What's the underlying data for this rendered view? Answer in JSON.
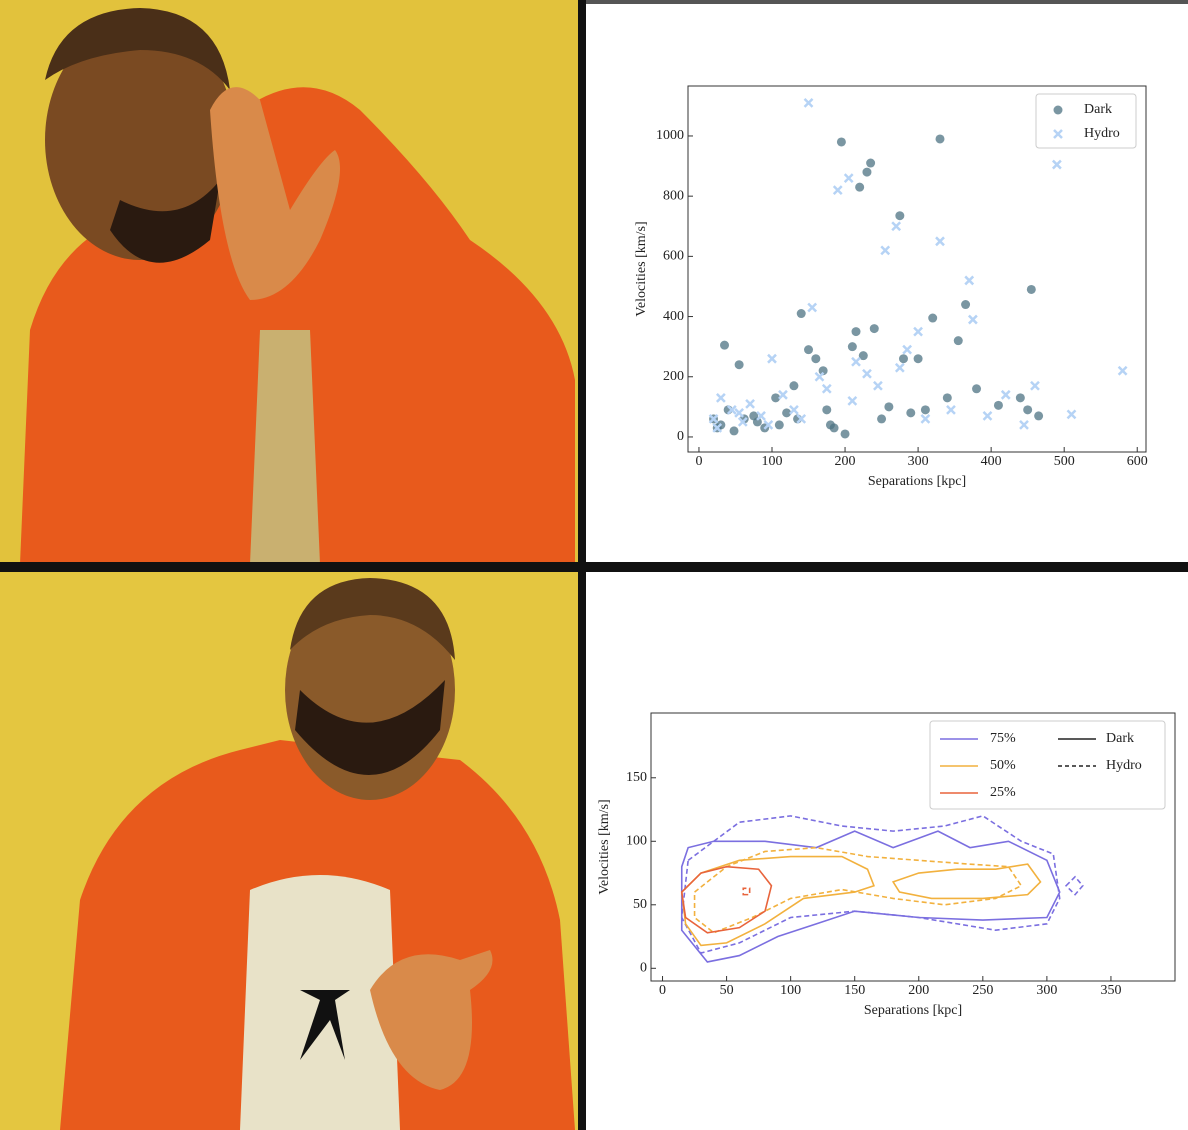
{
  "chart_data": [
    {
      "type": "scatter",
      "x_label": "Separations [kpc]",
      "y_label": "Velocities [km/s]",
      "xlim": [
        -15,
        612
      ],
      "ylim": [
        -50,
        1166
      ],
      "xticks": [
        0,
        100,
        200,
        300,
        400,
        500,
        600
      ],
      "yticks": [
        0,
        200,
        400,
        600,
        800,
        1000
      ],
      "legend": "upper right",
      "series": [
        {
          "name": "Dark",
          "color": "#4d7383",
          "marker": "circle",
          "x": [
            30,
            35,
            48,
            55,
            62,
            75,
            90,
            105,
            120,
            135,
            140,
            150,
            160,
            170,
            175,
            180,
            195,
            200,
            210,
            215,
            220,
            225,
            230,
            235,
            240,
            250,
            260,
            275,
            280,
            290,
            300,
            310,
            320,
            330,
            340,
            355,
            365,
            380,
            410,
            440,
            450,
            455,
            465,
            20,
            25,
            40,
            80,
            110,
            130,
            185
          ],
          "values": [
            40,
            305,
            20,
            240,
            60,
            70,
            30,
            130,
            80,
            60,
            410,
            290,
            260,
            220,
            90,
            40,
            980,
            10,
            300,
            350,
            830,
            270,
            880,
            910,
            360,
            60,
            100,
            735,
            260,
            80,
            260,
            90,
            395,
            990,
            130,
            320,
            440,
            160,
            105,
            130,
            90,
            490,
            70,
            60,
            30,
            90,
            50,
            40,
            170,
            30
          ]
        },
        {
          "name": "Hydro",
          "color": "#b6d3f5",
          "marker": "x",
          "x": [
            20,
            30,
            45,
            60,
            70,
            85,
            100,
            115,
            130,
            150,
            155,
            165,
            175,
            190,
            205,
            210,
            215,
            230,
            245,
            255,
            270,
            275,
            285,
            300,
            310,
            330,
            345,
            370,
            375,
            395,
            420,
            445,
            460,
            510,
            580,
            490,
            25,
            55,
            95,
            140
          ],
          "values": [
            60,
            130,
            90,
            50,
            110,
            70,
            260,
            140,
            90,
            1110,
            430,
            200,
            160,
            820,
            860,
            120,
            250,
            210,
            170,
            620,
            700,
            230,
            290,
            350,
            60,
            650,
            90,
            520,
            390,
            70,
            140,
            40,
            170,
            75,
            220,
            905,
            30,
            80,
            40,
            60
          ]
        }
      ]
    },
    {
      "type": "contour",
      "x_label": "Separations [kpc]",
      "y_label": "Velocities [km/s]",
      "xlim": [
        -9,
        400
      ],
      "ylim": [
        -10,
        201
      ],
      "xticks": [
        0,
        50,
        100,
        150,
        200,
        250,
        300,
        350
      ],
      "yticks": [
        0,
        50,
        100,
        150
      ],
      "legend": "upper right",
      "levels": [
        {
          "name": "75%",
          "color": "#7b6fe0"
        },
        {
          "name": "50%",
          "color": "#f2b13e"
        },
        {
          "name": "25%",
          "color": "#e8643c"
        }
      ],
      "styles": [
        {
          "name": "Dark",
          "dash": false
        },
        {
          "name": "Hydro",
          "dash": true
        }
      ],
      "contours": [
        {
          "level": "75%",
          "style": "Dark",
          "x": [
            15,
            20,
            40,
            80,
            120,
            150,
            180,
            215,
            240,
            270,
            300,
            310,
            300,
            250,
            200,
            150,
            120,
            90,
            60,
            35,
            15
          ],
          "y": [
            80,
            95,
            100,
            100,
            95,
            108,
            95,
            108,
            95,
            100,
            85,
            60,
            40,
            38,
            40,
            45,
            35,
            25,
            10,
            5,
            30
          ]
        },
        {
          "level": "75%",
          "style": "Hydro",
          "x": [
            20,
            40,
            60,
            100,
            140,
            180,
            220,
            250,
            280,
            305,
            310,
            300,
            260,
            200,
            150,
            100,
            60,
            30,
            15
          ],
          "y": [
            85,
            100,
            115,
            120,
            112,
            108,
            112,
            120,
            100,
            90,
            55,
            35,
            30,
            40,
            45,
            40,
            20,
            12,
            40
          ]
        },
        {
          "level": "75%",
          "style": "Hydro",
          "x": [
            315,
            322,
            328,
            322
          ],
          "y": [
            65,
            72,
            65,
            58
          ]
        },
        {
          "level": "50%",
          "style": "Dark",
          "x": [
            15,
            30,
            60,
            100,
            140,
            160,
            165,
            150,
            110,
            80,
            50,
            30,
            18
          ],
          "y": [
            60,
            75,
            85,
            88,
            88,
            78,
            65,
            60,
            55,
            35,
            20,
            18,
            35
          ]
        },
        {
          "level": "50%",
          "style": "Dark",
          "x": [
            180,
            200,
            230,
            260,
            285,
            295,
            285,
            250,
            210,
            185
          ],
          "y": [
            68,
            75,
            78,
            78,
            82,
            68,
            58,
            55,
            55,
            60
          ]
        },
        {
          "level": "50%",
          "style": "Hydro",
          "x": [
            25,
            50,
            80,
            120,
            160,
            200,
            240,
            270,
            280,
            260,
            220,
            180,
            140,
            100,
            70,
            40,
            25
          ],
          "y": [
            60,
            80,
            92,
            95,
            88,
            85,
            82,
            80,
            65,
            55,
            50,
            55,
            62,
            55,
            40,
            28,
            40
          ]
        },
        {
          "level": "25%",
          "style": "Dark",
          "x": [
            15,
            30,
            50,
            75,
            85,
            80,
            60,
            35,
            18
          ],
          "y": [
            60,
            75,
            80,
            78,
            65,
            45,
            32,
            28,
            40
          ]
        },
        {
          "level": "25%",
          "style": "Hydro",
          "x": [
            63,
            68,
            68,
            63
          ],
          "y": [
            58,
            58,
            63,
            63
          ]
        }
      ]
    }
  ]
}
